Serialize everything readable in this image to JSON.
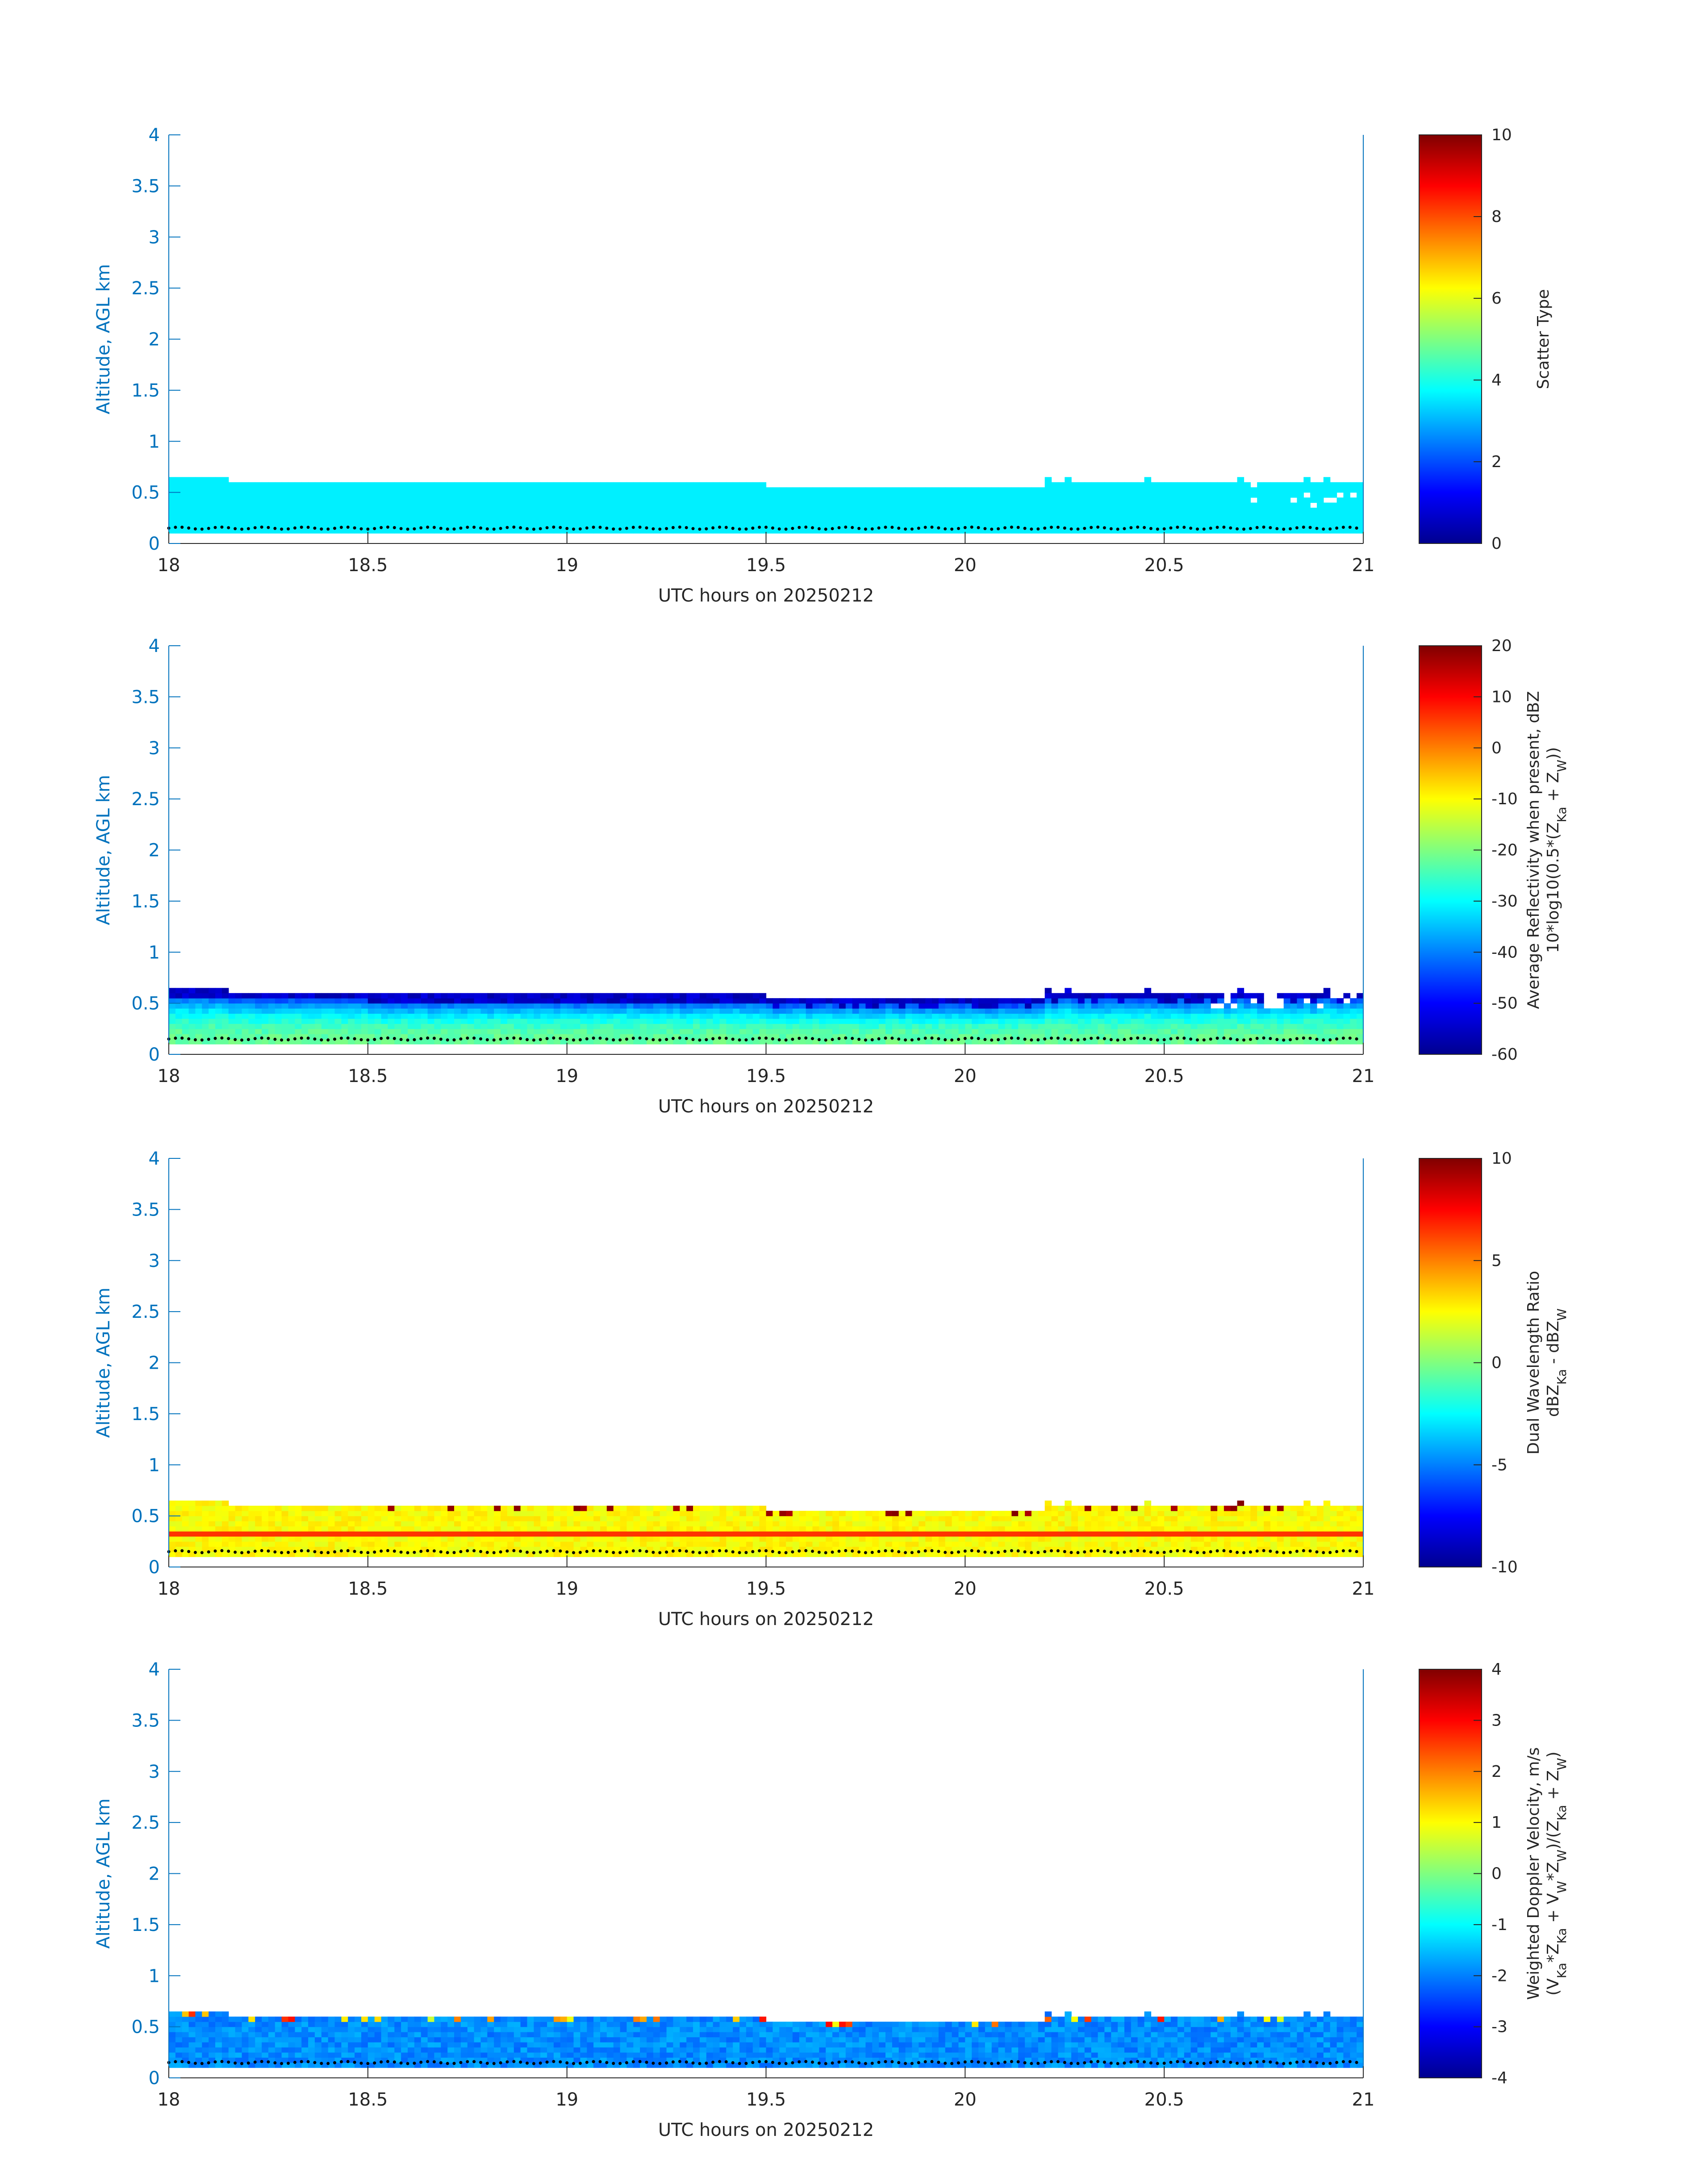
{
  "chart_data": [
    {
      "type": "heatmap",
      "xlabel": "UTC hours on 20250212",
      "ylabel": "Altitude, AGL km",
      "xlim": [
        18,
        21
      ],
      "ylim": [
        0,
        4
      ],
      "xticks": [
        "18",
        "18.5",
        "19",
        "19.5",
        "20",
        "20.5",
        "21"
      ],
      "yticks": [
        "0",
        "0.5",
        "1",
        "1.5",
        "2",
        "2.5",
        "3",
        "3.5",
        "4"
      ],
      "colorbar": {
        "label_lines": [
          "Scatter Type"
        ],
        "range": [
          0,
          10
        ],
        "ticks": [
          "0",
          "2",
          "4",
          "6",
          "8",
          "10"
        ]
      },
      "field": "scatter_type",
      "notes": "Field value ~3.5 (cyan) from surface to ~0.5–0.6 km; sporadic gaps near 20.7–21 UTC",
      "cloud_base_km": 0.15,
      "cloud_top_km": [
        0.6,
        0.55,
        0.55,
        0.5,
        0.5,
        0.5,
        0.55
      ]
    },
    {
      "type": "heatmap",
      "xlabel": "UTC hours on 20250212",
      "ylabel": "Altitude, AGL km",
      "xlim": [
        18,
        21
      ],
      "ylim": [
        0,
        4
      ],
      "xticks": [
        "18",
        "18.5",
        "19",
        "19.5",
        "20",
        "20.5",
        "21"
      ],
      "yticks": [
        "0",
        "0.5",
        "1",
        "1.5",
        "2",
        "2.5",
        "3",
        "3.5",
        "4"
      ],
      "colorbar": {
        "label_lines": [
          "Average Reflectivity when present, dBZ",
          "10*log10(0.5*(Z_Ka + Z_W))"
        ],
        "range": [
          -60,
          20
        ],
        "ticks": [
          "-60",
          "-50",
          "-40",
          "-30",
          "-20",
          "-10",
          "0",
          "10",
          "20"
        ]
      },
      "field": "reflectivity",
      "notes": "~-20 to -25 dBZ in 0.2–0.4 km, decreasing to ~-55 dBZ near layer top"
    },
    {
      "type": "heatmap",
      "xlabel": "UTC hours on 20250212",
      "ylabel": "Altitude, AGL km",
      "xlim": [
        18,
        21
      ],
      "ylim": [
        0,
        4
      ],
      "xticks": [
        "18",
        "18.5",
        "19",
        "19.5",
        "20",
        "20.5",
        "21"
      ],
      "yticks": [
        "0",
        "0.5",
        "1",
        "1.5",
        "2",
        "2.5",
        "3",
        "3.5",
        "4"
      ],
      "colorbar": {
        "label_lines": [
          "Dual Wavelength Ratio",
          "dBZ_Ka - dBZ_W"
        ],
        "range": [
          -10,
          10
        ],
        "ticks": [
          "-10",
          "-5",
          "0",
          "5",
          "10"
        ]
      },
      "field": "dwr",
      "notes": "~2–3 dB through layer, ~6 dB band near 0.28 km, scattered 8–10 dB at top"
    },
    {
      "type": "heatmap",
      "xlabel": "UTC hours on 20250212",
      "ylabel": "Altitude, AGL km",
      "xlim": [
        18,
        21
      ],
      "ylim": [
        0,
        4
      ],
      "xticks": [
        "18",
        "18.5",
        "19",
        "19.5",
        "20",
        "20.5",
        "21"
      ],
      "yticks": [
        "0",
        "0.5",
        "1",
        "1.5",
        "2",
        "2.5",
        "3",
        "3.5",
        "4"
      ],
      "colorbar": {
        "label_lines": [
          "Weighted Doppler Velocity, m/s",
          "(V_Ka*Z_Ka + V_W*Z_W)/(Z_Ka + Z_W)"
        ],
        "range": [
          -4,
          4
        ],
        "ticks": [
          "-4",
          "-3",
          "-2",
          "-1",
          "0",
          "1",
          "2",
          "3",
          "4"
        ]
      },
      "field": "doppler",
      "notes": "~-1.5 to -2 m/s through layer, occasional positive values near top"
    }
  ]
}
